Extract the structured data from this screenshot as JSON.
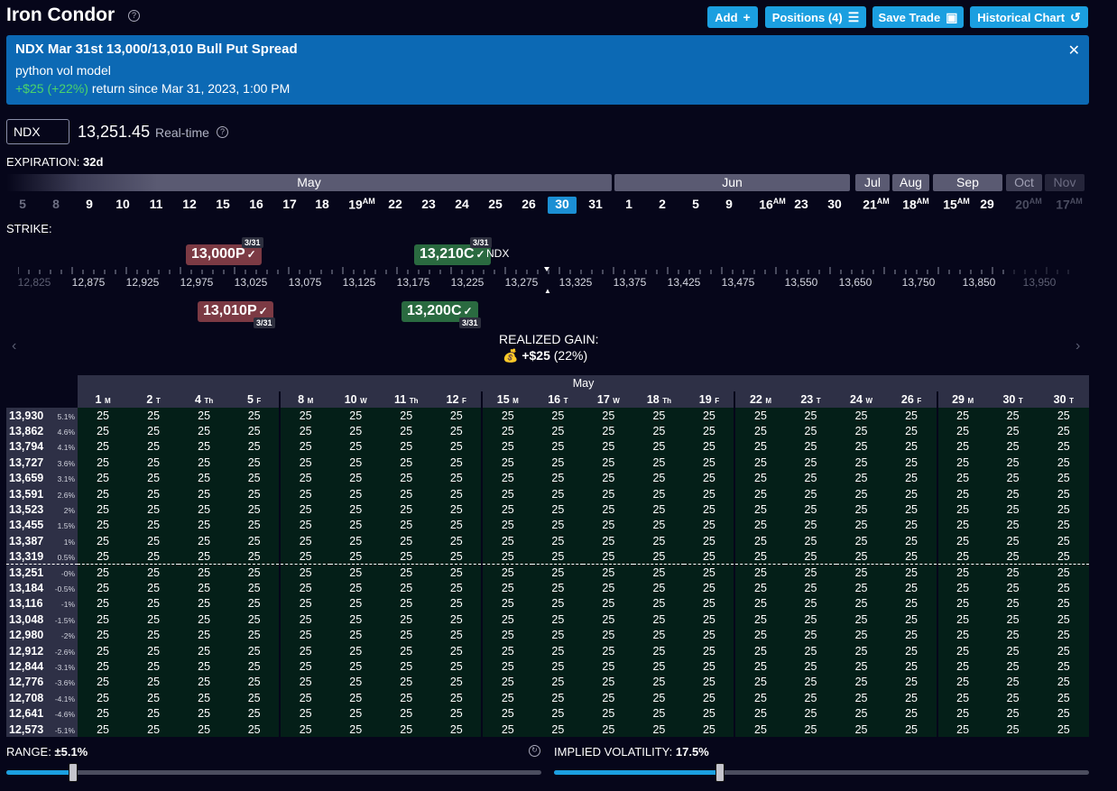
{
  "header": {
    "title": "Iron Condor",
    "buttons": {
      "add": "Add",
      "positions": "Positions (4)",
      "save_trade": "Save Trade",
      "historical_chart": "Historical Chart"
    }
  },
  "banner": {
    "title": "NDX Mar 31st 13,000/13,010 Bull Put Spread",
    "model": "python vol model",
    "return_amount": "+$25",
    "return_pct": "(+22%)",
    "return_text": "return since Mar 31, 2023, 1:00 PM"
  },
  "quote": {
    "symbol": "NDX",
    "price": "13,251.45",
    "mode": "Real-time"
  },
  "expiration": {
    "label": "EXPIRATION:",
    "value": "32d",
    "months": [
      "May",
      "Jun",
      "Jul",
      "Aug",
      "Sep",
      "Oct",
      "Nov"
    ],
    "days": [
      "5",
      "8",
      "9",
      "10",
      "11",
      "12",
      "15",
      "16",
      "17",
      "18",
      "19",
      "22",
      "23",
      "24",
      "25",
      "26",
      "30",
      "31",
      "1",
      "2",
      "5",
      "9",
      "16",
      "23",
      "30",
      "21",
      "18",
      "15",
      "29",
      "20",
      "17"
    ],
    "am_suffix": "AM"
  },
  "strike": {
    "label": "STRIKE:",
    "ticks": [
      "12,825",
      "12,875",
      "12,925",
      "12,975",
      "13,025",
      "13,075",
      "13,125",
      "13,175",
      "13,225",
      "13,275",
      "13,325",
      "13,375",
      "13,425",
      "13,475",
      "13,550",
      "13,650",
      "13,750",
      "13,850",
      "13,950"
    ],
    "legs": {
      "p13000": "13,000P",
      "p13010": "13,010P",
      "c13210": "13,210C",
      "c13200": "13,200C",
      "date": "3/31"
    },
    "underlying_label": "NDX"
  },
  "realized_gain": {
    "label": "REALIZED GAIN:",
    "value": "+$25",
    "pct": "(22%)"
  },
  "grid": {
    "month": "May",
    "columns": [
      {
        "d": "1",
        "w": "M"
      },
      {
        "d": "2",
        "w": "T"
      },
      {
        "d": "4",
        "w": "Th"
      },
      {
        "d": "5",
        "w": "F"
      },
      {
        "d": "8",
        "w": "M"
      },
      {
        "d": "10",
        "w": "W"
      },
      {
        "d": "11",
        "w": "Th"
      },
      {
        "d": "12",
        "w": "F"
      },
      {
        "d": "15",
        "w": "M"
      },
      {
        "d": "16",
        "w": "T"
      },
      {
        "d": "17",
        "w": "W"
      },
      {
        "d": "18",
        "w": "Th"
      },
      {
        "d": "19",
        "w": "F"
      },
      {
        "d": "22",
        "w": "M"
      },
      {
        "d": "23",
        "w": "T"
      },
      {
        "d": "24",
        "w": "W"
      },
      {
        "d": "26",
        "w": "F"
      },
      {
        "d": "29",
        "w": "M"
      },
      {
        "d": "30",
        "w": "T"
      },
      {
        "d": "30",
        "w": "T"
      }
    ],
    "rows": [
      {
        "price": "13,930",
        "pct": "5.1%"
      },
      {
        "price": "13,862",
        "pct": "4.6%"
      },
      {
        "price": "13,794",
        "pct": "4.1%"
      },
      {
        "price": "13,727",
        "pct": "3.6%"
      },
      {
        "price": "13,659",
        "pct": "3.1%"
      },
      {
        "price": "13,591",
        "pct": "2.6%"
      },
      {
        "price": "13,523",
        "pct": "2%"
      },
      {
        "price": "13,455",
        "pct": "1.5%"
      },
      {
        "price": "13,387",
        "pct": "1%"
      },
      {
        "price": "13,319",
        "pct": "0.5%"
      },
      {
        "price": "13,251",
        "pct": "-0%"
      },
      {
        "price": "13,184",
        "pct": "-0.5%"
      },
      {
        "price": "13,116",
        "pct": "-1%"
      },
      {
        "price": "13,048",
        "pct": "-1.5%"
      },
      {
        "price": "12,980",
        "pct": "-2%"
      },
      {
        "price": "12,912",
        "pct": "-2.6%"
      },
      {
        "price": "12,844",
        "pct": "-3.1%"
      },
      {
        "price": "12,776",
        "pct": "-3.6%"
      },
      {
        "price": "12,708",
        "pct": "-4.1%"
      },
      {
        "price": "12,641",
        "pct": "-4.6%"
      },
      {
        "price": "12,573",
        "pct": "-5.1%"
      }
    ],
    "cell_value": "25"
  },
  "controls": {
    "range_label": "RANGE:",
    "range_value": "±5.1%",
    "range_fraction": 0.125,
    "iv_label": "IMPLIED VOLATILITY:",
    "iv_value": "17.5%",
    "iv_fraction": 0.31
  },
  "colors": {
    "accent": "#1b9fe0",
    "banner": "#0c69b4",
    "gain_green": "#4bd36b",
    "cell_bg": "#041f18",
    "put_tag": "#7c3a44",
    "call_tag": "#2a6a40"
  }
}
